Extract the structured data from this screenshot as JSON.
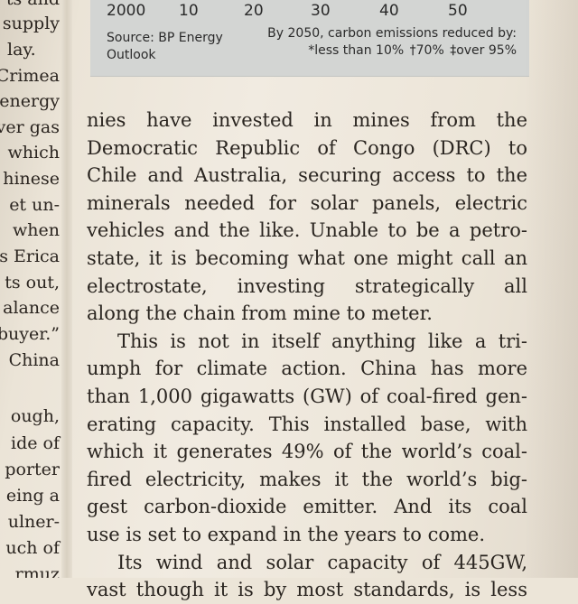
{
  "left_column": {
    "lines": [
      "ts and",
      "supply",
      "lay.",
      "Crimea",
      "energy",
      "ver gas",
      "which",
      "hinese",
      "et un-",
      "when",
      "s Erica",
      "ts out,",
      "alance",
      "buyer.”",
      "China",
      "",
      "ough,",
      "ide of",
      "porter",
      "eing a",
      "ulner-",
      "uch of",
      "rmuz"
    ]
  },
  "chart_box": {
    "ticks": [
      "2000",
      "10",
      "20",
      "30",
      "40",
      "50"
    ],
    "source_line1": "Source: BP Energy",
    "source_line2": "Outlook",
    "note_line1": "By 2050, carbon emissions reduced by:",
    "note_a": "*less than 10%",
    "note_b": "†70%",
    "note_c": "‡over 95%"
  },
  "main_column": {
    "lines": [
      "nies have invested in mines from the",
      "Democratic Republic of Congo (DRC) to",
      "Chile and Australia, securing access to the",
      "minerals needed for solar panels, electric",
      "vehicles and the like. Unable to be a petro-",
      "state, it is becoming what one might call an",
      "electrostate, investing strategically all",
      "along the chain from mine to meter.",
      "This is not in itself anything like a tri-",
      "umph for climate action. China has more",
      "than 1,000 gigawatts (GW) of coal-fired gen-",
      "erating capacity. This installed base, with",
      "which it generates 49% of the world’s coal-",
      "fired electricity, makes it the world’s big-",
      "gest carbon-dioxide emitter. And its coal",
      "use is set to expand in the years to come.",
      "Its wind and solar capacity of 445GW,",
      "vast though it is by most standards, is less"
    ]
  }
}
